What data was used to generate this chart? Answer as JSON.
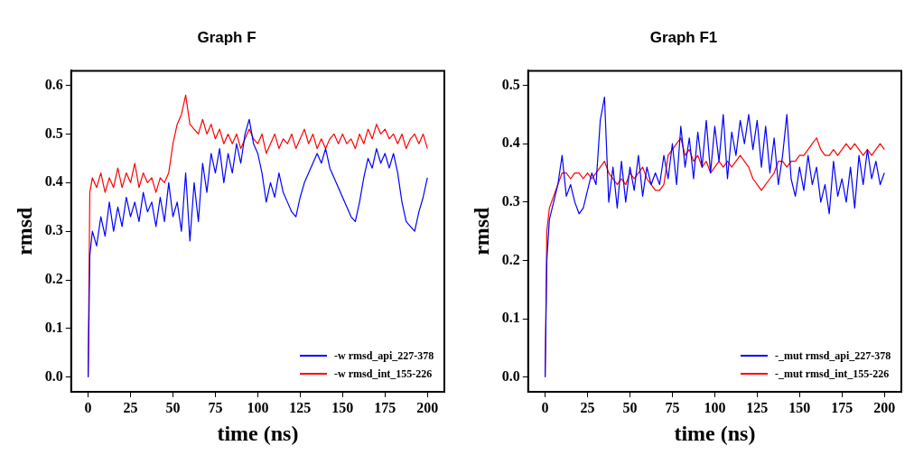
{
  "chart_data": [
    {
      "type": "line",
      "title": "Graph F",
      "xlabel": "time (ns)",
      "ylabel": "rmsd",
      "x": [
        0,
        1,
        2.5,
        5,
        7.5,
        10,
        12.5,
        15,
        17.5,
        20,
        22.5,
        25,
        27.5,
        30,
        32.5,
        35,
        37.5,
        40,
        42.5,
        45,
        47.5,
        50,
        52.5,
        55,
        57.5,
        60,
        62.5,
        65,
        67.5,
        70,
        72.5,
        75,
        77.5,
        80,
        82.5,
        85,
        87.5,
        90,
        92.5,
        95,
        97.5,
        100,
        102.5,
        105,
        107.5,
        110,
        112.5,
        115,
        117.5,
        120,
        122.5,
        125,
        127.5,
        130,
        132.5,
        135,
        137.5,
        140,
        142.5,
        145,
        147.5,
        150,
        152.5,
        155,
        157.5,
        160,
        162.5,
        165,
        167.5,
        170,
        172.5,
        175,
        177.5,
        180,
        182.5,
        185,
        187.5,
        190,
        192.5,
        195,
        197.5,
        200
      ],
      "series": [
        {
          "name": "-w rmsd_api_227-378",
          "color": "#0000ff",
          "values": [
            0,
            0.25,
            0.3,
            0.27,
            0.33,
            0.29,
            0.36,
            0.3,
            0.35,
            0.31,
            0.37,
            0.33,
            0.36,
            0.32,
            0.38,
            0.34,
            0.36,
            0.31,
            0.37,
            0.32,
            0.4,
            0.33,
            0.36,
            0.3,
            0.42,
            0.28,
            0.4,
            0.32,
            0.44,
            0.38,
            0.46,
            0.42,
            0.47,
            0.4,
            0.46,
            0.42,
            0.48,
            0.44,
            0.5,
            0.53,
            0.48,
            0.46,
            0.42,
            0.36,
            0.4,
            0.37,
            0.42,
            0.38,
            0.36,
            0.34,
            0.33,
            0.37,
            0.4,
            0.42,
            0.44,
            0.46,
            0.44,
            0.47,
            0.43,
            0.41,
            0.39,
            0.37,
            0.35,
            0.33,
            0.32,
            0.36,
            0.41,
            0.45,
            0.43,
            0.47,
            0.44,
            0.46,
            0.43,
            0.46,
            0.42,
            0.36,
            0.32,
            0.31,
            0.3,
            0.34,
            0.37,
            0.41
          ]
        },
        {
          "name": "-w rmsd_int_155-226",
          "color": "#ff0000",
          "values": [
            0,
            0.38,
            0.41,
            0.39,
            0.42,
            0.38,
            0.41,
            0.39,
            0.43,
            0.39,
            0.42,
            0.4,
            0.44,
            0.39,
            0.42,
            0.4,
            0.41,
            0.38,
            0.41,
            0.4,
            0.42,
            0.48,
            0.52,
            0.54,
            0.58,
            0.52,
            0.51,
            0.5,
            0.53,
            0.5,
            0.52,
            0.49,
            0.51,
            0.48,
            0.5,
            0.48,
            0.5,
            0.47,
            0.49,
            0.51,
            0.49,
            0.48,
            0.5,
            0.46,
            0.48,
            0.5,
            0.47,
            0.49,
            0.48,
            0.5,
            0.47,
            0.49,
            0.51,
            0.48,
            0.5,
            0.47,
            0.49,
            0.47,
            0.49,
            0.5,
            0.48,
            0.5,
            0.48,
            0.49,
            0.47,
            0.5,
            0.48,
            0.51,
            0.49,
            0.52,
            0.5,
            0.51,
            0.49,
            0.5,
            0.48,
            0.5,
            0.47,
            0.49,
            0.5,
            0.48,
            0.5,
            0.47
          ]
        }
      ],
      "xlim": [
        -10,
        210
      ],
      "xticks": [
        0,
        25,
        50,
        75,
        100,
        125,
        150,
        175,
        200
      ],
      "ylim": [
        -0.03,
        0.63
      ],
      "yticks": [
        {
          "value": 0,
          "label": "0.0"
        },
        {
          "value": 0.1,
          "label": "0.1"
        },
        {
          "value": 0.2,
          "label": "0.2"
        },
        {
          "value": 0.3,
          "label": "0.3"
        },
        {
          "value": 0.4,
          "label": "0.4"
        },
        {
          "value": 0.5,
          "label": "0.5"
        },
        {
          "value": 0.6,
          "label": "0.6"
        }
      ],
      "legend": "bottom right",
      "grid": false,
      "marker": "none",
      "line_style": "solid"
    },
    {
      "type": "line",
      "title": "Graph F1",
      "xlabel": "time (ns)",
      "ylabel": "rmsd",
      "x": [
        0,
        1,
        2.5,
        5,
        7.5,
        10,
        12.5,
        15,
        17.5,
        20,
        22.5,
        25,
        27.5,
        30,
        32.5,
        35,
        37.5,
        40,
        42.5,
        45,
        47.5,
        50,
        52.5,
        55,
        57.5,
        60,
        62.5,
        65,
        67.5,
        70,
        72.5,
        75,
        77.5,
        80,
        82.5,
        85,
        87.5,
        90,
        92.5,
        95,
        97.5,
        100,
        102.5,
        105,
        107.5,
        110,
        112.5,
        115,
        117.5,
        120,
        122.5,
        125,
        127.5,
        130,
        132.5,
        135,
        137.5,
        140,
        142.5,
        145,
        147.5,
        150,
        152.5,
        155,
        157.5,
        160,
        162.5,
        165,
        167.5,
        170,
        172.5,
        175,
        177.5,
        180,
        182.5,
        185,
        187.5,
        190,
        192.5,
        195,
        197.5,
        200
      ],
      "series": [
        {
          "name": "-_mut rmsd_api_227-378",
          "color": "#0000ff",
          "values": [
            0,
            0.2,
            0.27,
            0.3,
            0.33,
            0.38,
            0.31,
            0.33,
            0.3,
            0.28,
            0.29,
            0.32,
            0.35,
            0.33,
            0.44,
            0.48,
            0.3,
            0.36,
            0.29,
            0.37,
            0.3,
            0.36,
            0.32,
            0.38,
            0.31,
            0.36,
            0.33,
            0.35,
            0.33,
            0.38,
            0.34,
            0.4,
            0.33,
            0.43,
            0.36,
            0.41,
            0.34,
            0.42,
            0.36,
            0.44,
            0.35,
            0.43,
            0.37,
            0.45,
            0.34,
            0.42,
            0.38,
            0.44,
            0.4,
            0.45,
            0.39,
            0.44,
            0.36,
            0.43,
            0.35,
            0.41,
            0.33,
            0.38,
            0.45,
            0.34,
            0.31,
            0.36,
            0.32,
            0.38,
            0.33,
            0.36,
            0.3,
            0.33,
            0.28,
            0.37,
            0.31,
            0.34,
            0.3,
            0.36,
            0.29,
            0.38,
            0.33,
            0.39,
            0.34,
            0.37,
            0.33,
            0.35
          ]
        },
        {
          "name": "-_mut rmsd_int_155-226",
          "color": "#ff0000",
          "values": [
            0,
            0.25,
            0.29,
            0.31,
            0.33,
            0.35,
            0.35,
            0.34,
            0.35,
            0.35,
            0.34,
            0.35,
            0.34,
            0.35,
            0.36,
            0.37,
            0.35,
            0.34,
            0.33,
            0.34,
            0.33,
            0.35,
            0.34,
            0.35,
            0.36,
            0.34,
            0.33,
            0.32,
            0.32,
            0.33,
            0.38,
            0.39,
            0.4,
            0.41,
            0.38,
            0.39,
            0.37,
            0.38,
            0.36,
            0.37,
            0.35,
            0.36,
            0.37,
            0.36,
            0.37,
            0.36,
            0.37,
            0.38,
            0.37,
            0.36,
            0.34,
            0.33,
            0.32,
            0.33,
            0.34,
            0.35,
            0.37,
            0.37,
            0.36,
            0.37,
            0.37,
            0.38,
            0.38,
            0.39,
            0.4,
            0.41,
            0.39,
            0.38,
            0.38,
            0.39,
            0.38,
            0.39,
            0.4,
            0.39,
            0.4,
            0.39,
            0.38,
            0.39,
            0.38,
            0.39,
            0.4,
            0.39
          ]
        }
      ],
      "xlim": [
        -10,
        210
      ],
      "xticks": [
        0,
        25,
        50,
        75,
        100,
        125,
        150,
        175,
        200
      ],
      "ylim": [
        -0.025,
        0.525
      ],
      "yticks": [
        {
          "value": 0,
          "label": "0.0"
        },
        {
          "value": 0.1,
          "label": "0.1"
        },
        {
          "value": 0.2,
          "label": "0.2"
        },
        {
          "value": 0.3,
          "label": "0.3"
        },
        {
          "value": 0.4,
          "label": "0.4"
        },
        {
          "value": 0.5,
          "label": "0.5"
        }
      ],
      "legend": "bottom right",
      "grid": false,
      "marker": "none",
      "line_style": "solid"
    }
  ]
}
